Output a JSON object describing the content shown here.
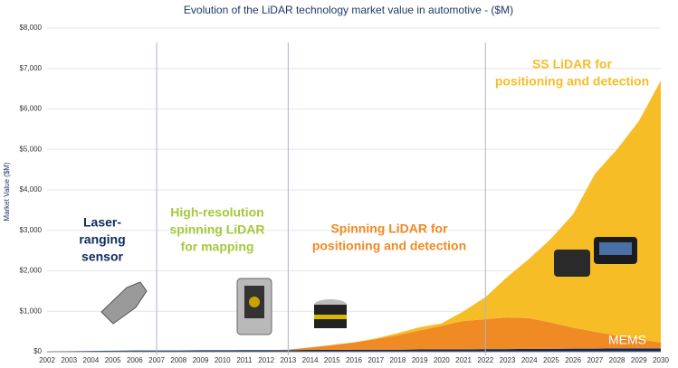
{
  "chart_data": {
    "type": "stacked_area",
    "title": "Evolution of the LiDAR technology market value in automotive - ($M)",
    "y_label": "Market Value ($M)",
    "x": [
      2002,
      2003,
      2004,
      2005,
      2006,
      2007,
      2008,
      2009,
      2010,
      2011,
      2012,
      2013,
      2014,
      2015,
      2016,
      2017,
      2018,
      2019,
      2020,
      2021,
      2022,
      2023,
      2024,
      2025,
      2026,
      2027,
      2028,
      2029,
      2030
    ],
    "xlim": [
      2002,
      2030
    ],
    "ylim": [
      0,
      8000
    ],
    "yticks": [
      {
        "value": 0,
        "label": "$0"
      },
      {
        "value": 1000,
        "label": "$1,000"
      },
      {
        "value": 2000,
        "label": "$2,000"
      },
      {
        "value": 3000,
        "label": "$3,000"
      },
      {
        "value": 4000,
        "label": "$4,000"
      },
      {
        "value": 5000,
        "label": "$5,000"
      },
      {
        "value": 6000,
        "label": "$6,000"
      },
      {
        "value": 7000,
        "label": "$7,000"
      },
      {
        "value": 8000,
        "label": "$8,000"
      }
    ],
    "series": [
      {
        "color": "#0d2a5c",
        "values": [
          10,
          15,
          20,
          25,
          30,
          30,
          30,
          35,
          35,
          40,
          40,
          40,
          45,
          45,
          50,
          50,
          50,
          55,
          60,
          60,
          65,
          65,
          70,
          70,
          75,
          75,
          80,
          80,
          80
        ]
      },
      {
        "color": "#f08a24",
        "values": [
          0,
          0,
          0,
          0,
          0,
          0,
          0,
          0,
          0,
          0,
          0,
          10,
          60,
          120,
          180,
          260,
          360,
          470,
          580,
          700,
          740,
          780,
          760,
          650,
          520,
          420,
          320,
          230,
          150
        ]
      },
      {
        "color": "#f7bd26",
        "values": [
          0,
          0,
          0,
          0,
          0,
          0,
          0,
          0,
          0,
          0,
          0,
          0,
          0,
          0,
          0,
          20,
          50,
          80,
          60,
          240,
          545,
          1005,
          1470,
          2080,
          2805,
          3905,
          4600,
          5390,
          6470
        ]
      }
    ],
    "phase_dividers": [
      2007,
      2013,
      2022
    ],
    "annotations": [
      {
        "lines": [
          "Laser-",
          "ranging",
          "sensor"
        ],
        "color": "#0d2a5c"
      },
      {
        "lines": [
          "High-resolution",
          "spinning LiDAR",
          "for mapping"
        ],
        "color": "#a4c93c"
      },
      {
        "lines": [
          "Spinning LiDAR for",
          "positioning and detection"
        ],
        "color": "#f08a24"
      },
      {
        "lines": [
          "SS LiDAR for",
          "positioning and detection"
        ],
        "color": "#f7bd26"
      }
    ],
    "watermark": "MEMS"
  }
}
